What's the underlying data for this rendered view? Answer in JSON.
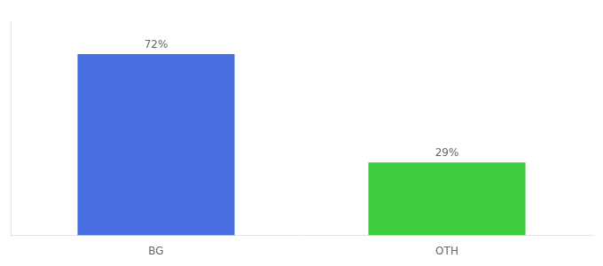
{
  "chart_data": {
    "type": "bar",
    "categories": [
      "BG",
      "OTH"
    ],
    "values": [
      72,
      29
    ],
    "value_labels": [
      "72%",
      "29%"
    ],
    "data_labels": true,
    "colors": [
      "#4a6fe3",
      "#3dcc3d"
    ],
    "ylim": [
      0,
      85
    ],
    "grid": false,
    "tick_labels": "x"
  }
}
